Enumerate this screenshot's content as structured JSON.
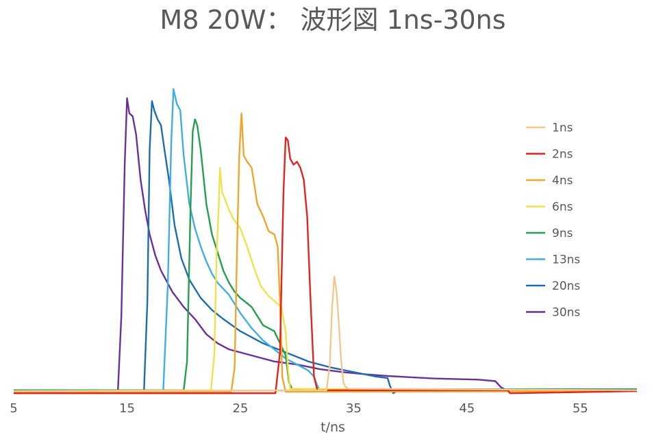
{
  "chart_data": {
    "type": "line",
    "title": "M8 20W： 波形図 1ns-30ns",
    "xlabel": "t/ns",
    "ylabel": "",
    "xlim": [
      5,
      60
    ],
    "ylim": [
      0,
      1
    ],
    "xticks": [
      "5",
      "15",
      "25",
      "35",
      "45",
      "55"
    ],
    "grid": false,
    "legend_position": "right",
    "series": [
      {
        "name": "1ns",
        "color": "#F0C990",
        "x": [
          5,
          32.6,
          32.9,
          33.1,
          33.3,
          33.5,
          33.7,
          33.9,
          34.1,
          34.3,
          34.6,
          60
        ],
        "y": [
          0.002,
          0.005,
          0.09,
          0.28,
          0.38,
          0.33,
          0.22,
          0.1,
          0.03,
          0.015,
          0.01,
          0.005
        ]
      },
      {
        "name": "2ns",
        "color": "#E3231E",
        "x": [
          5,
          28.1,
          28.5,
          28.8,
          29.0,
          29.2,
          29.4,
          29.7,
          30.0,
          30.3,
          30.6,
          30.9,
          31.2,
          31.5,
          31.8,
          48.6,
          48.8,
          60
        ],
        "y": [
          -0.005,
          -0.005,
          0.13,
          0.65,
          0.84,
          0.83,
          0.77,
          0.75,
          0.76,
          0.74,
          0.7,
          0.58,
          0.3,
          0.05,
          0.005,
          0.005,
          -0.005,
          0.002
        ]
      },
      {
        "name": "4ns",
        "color": "#F0A62C",
        "x": [
          5,
          24.2,
          24.5,
          24.7,
          24.9,
          25.1,
          25.3,
          25.6,
          26.0,
          26.5,
          27.0,
          27.5,
          28.0,
          28.3,
          28.5,
          28.7,
          29.0,
          60
        ],
        "y": [
          -0.002,
          0,
          0.08,
          0.45,
          0.78,
          0.92,
          0.78,
          0.76,
          0.74,
          0.62,
          0.58,
          0.53,
          0.52,
          0.48,
          0.3,
          0.05,
          0,
          0.002
        ]
      },
      {
        "name": "6ns",
        "color": "#EFE24A",
        "x": [
          5,
          22.4,
          22.7,
          22.9,
          23.1,
          23.2,
          23.4,
          23.7,
          24.0,
          24.4,
          25.0,
          25.6,
          26.2,
          26.8,
          27.4,
          28.0,
          28.6,
          29.0,
          29.2,
          29.4,
          60
        ],
        "y": [
          0.002,
          0.005,
          0.12,
          0.45,
          0.62,
          0.74,
          0.66,
          0.63,
          0.6,
          0.57,
          0.54,
          0.48,
          0.41,
          0.35,
          0.32,
          0.3,
          0.28,
          0.2,
          0.08,
          0.01,
          0.002
        ]
      },
      {
        "name": "9ns",
        "color": "#22A04B",
        "x": [
          5,
          20.0,
          20.3,
          20.6,
          20.8,
          21.0,
          21.2,
          21.5,
          22.0,
          22.5,
          23.0,
          23.5,
          24.0,
          24.5,
          25.0,
          26.0,
          27.0,
          28.0,
          28.5,
          29.0,
          29.3,
          29.6,
          60
        ],
        "y": [
          0.005,
          0.005,
          0.1,
          0.6,
          0.86,
          0.9,
          0.88,
          0.8,
          0.62,
          0.52,
          0.46,
          0.4,
          0.36,
          0.33,
          0.31,
          0.28,
          0.22,
          0.2,
          0.16,
          0.12,
          0.03,
          0.008,
          0.008
        ]
      },
      {
        "name": "13ns",
        "color": "#3EAEE3",
        "x": [
          5,
          18.2,
          18.6,
          18.9,
          19.1,
          19.4,
          19.7,
          20.0,
          20.5,
          21.0,
          21.5,
          22.0,
          22.5,
          23.0,
          24.0,
          25.0,
          26.0,
          27.0,
          28.0,
          29.0,
          30.0,
          31.0,
          31.5,
          31.8,
          32.0,
          32.3,
          60
        ],
        "y": [
          0.002,
          0.005,
          0.35,
          0.82,
          1.0,
          0.95,
          0.93,
          0.78,
          0.62,
          0.54,
          0.48,
          0.43,
          0.39,
          0.36,
          0.32,
          0.26,
          0.21,
          0.17,
          0.14,
          0.11,
          0.09,
          0.07,
          0.05,
          0.02,
          0.008,
          0.008,
          0.008
        ]
      },
      {
        "name": "20ns",
        "color": "#1F6BB0",
        "x": [
          5,
          16.5,
          16.8,
          17.0,
          17.2,
          17.4,
          17.7,
          18.0,
          18.3,
          18.7,
          19.2,
          19.8,
          20.5,
          21.5,
          22.5,
          23.5,
          25.0,
          27.0,
          29.0,
          31.0,
          33.0,
          35.0,
          37.0,
          38.0,
          38.2,
          38.5,
          39.0,
          60
        ],
        "y": [
          0.005,
          0.005,
          0.3,
          0.8,
          0.96,
          0.93,
          0.9,
          0.88,
          0.8,
          0.7,
          0.55,
          0.44,
          0.37,
          0.31,
          0.27,
          0.24,
          0.2,
          0.16,
          0.13,
          0.1,
          0.08,
          0.065,
          0.05,
          0.045,
          0.02,
          -0.005,
          0.008,
          0.008
        ]
      },
      {
        "name": "30ns",
        "color": "#6A2F9C",
        "x": [
          5,
          14.2,
          14.5,
          14.8,
          15.0,
          15.2,
          15.5,
          15.8,
          16.2,
          16.6,
          17.0,
          17.5,
          18.0,
          19.0,
          20.0,
          21.0,
          22.0,
          23.0,
          24.0,
          26.0,
          28.0,
          30.0,
          32.0,
          34.0,
          36.0,
          38.0,
          40.0,
          42.0,
          44.0,
          46.0,
          47.5,
          48.0,
          48.5,
          60
        ],
        "y": [
          0.005,
          0.005,
          0.25,
          0.75,
          0.97,
          0.92,
          0.91,
          0.85,
          0.7,
          0.6,
          0.52,
          0.45,
          0.4,
          0.33,
          0.28,
          0.24,
          0.19,
          0.16,
          0.14,
          0.12,
          0.1,
          0.09,
          0.075,
          0.065,
          0.058,
          0.052,
          0.048,
          0.044,
          0.042,
          0.04,
          0.035,
          0.015,
          0.005,
          0.005
        ]
      }
    ]
  }
}
